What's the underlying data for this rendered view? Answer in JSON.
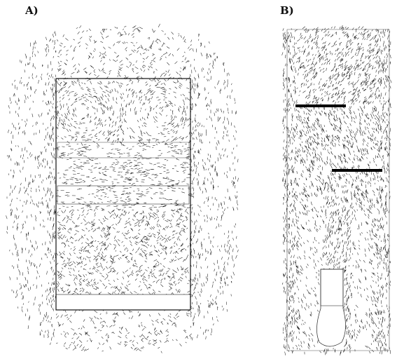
{
  "panels": [
    {
      "id": "a",
      "label": "A)"
    },
    {
      "id": "b",
      "label": "B)"
    }
  ],
  "colors": {
    "ink": "#1a1a1a",
    "paper": "#ffffff",
    "bar": "#000000"
  }
}
